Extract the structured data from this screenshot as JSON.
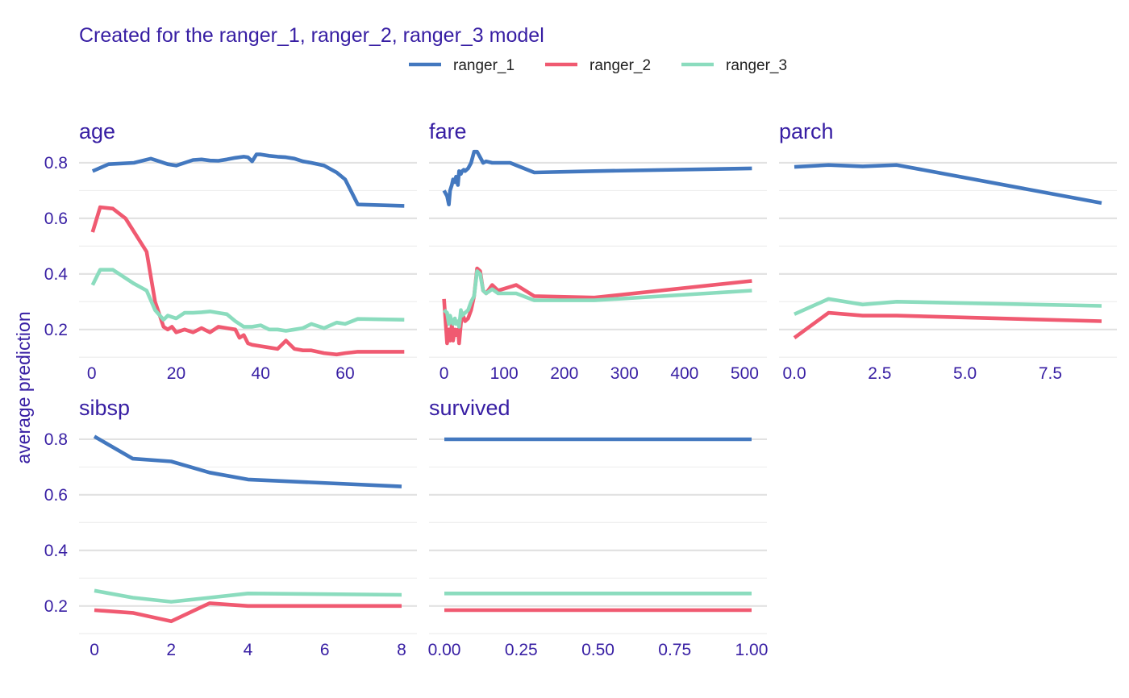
{
  "chart_data": {
    "type": "line",
    "title": "Created for the ranger_1, ranger_2, ranger_3 model",
    "ylabel": "average prediction",
    "legend_position": "top",
    "grid": true,
    "series_colors": {
      "ranger_1": "#4378bf",
      "ranger_2": "#f05a71",
      "ranger_3": "#8bdcbe"
    },
    "legend": [
      "ranger_1",
      "ranger_2",
      "ranger_3"
    ],
    "panels": [
      {
        "name": "age",
        "xlim": [
          -3,
          77
        ],
        "ylim": [
          0.095,
          0.855
        ],
        "xticks": [
          {
            "v": 0,
            "label": "0"
          },
          {
            "v": 20,
            "label": "20"
          },
          {
            "v": 40,
            "label": "40"
          },
          {
            "v": 60,
            "label": "60"
          }
        ],
        "yticks": [
          {
            "v": 0.2,
            "label": "0.2"
          },
          {
            "v": 0.4,
            "label": "0.4"
          },
          {
            "v": 0.6,
            "label": "0.6"
          },
          {
            "v": 0.8,
            "label": "0.8"
          }
        ],
        "series": [
          {
            "name": "ranger_1",
            "x": [
              0.2,
              4,
              10,
              14,
              16,
              18,
              20,
              22,
              24,
              26,
              28,
              30,
              32,
              34,
              36,
              37,
              38,
              39,
              40,
              42,
              44,
              46,
              48,
              50,
              52,
              55,
              58,
              60,
              63,
              74
            ],
            "y": [
              0.77,
              0.795,
              0.8,
              0.815,
              0.805,
              0.795,
              0.79,
              0.8,
              0.81,
              0.812,
              0.808,
              0.807,
              0.812,
              0.818,
              0.822,
              0.82,
              0.805,
              0.83,
              0.83,
              0.825,
              0.822,
              0.82,
              0.815,
              0.805,
              0.8,
              0.79,
              0.765,
              0.74,
              0.65,
              0.645
            ]
          },
          {
            "name": "ranger_2",
            "x": [
              0.2,
              2,
              5,
              8,
              13,
              15,
              17,
              18,
              19,
              20,
              22,
              24,
              26,
              28,
              30,
              32,
              34,
              35,
              36,
              37,
              38,
              40,
              42,
              44,
              46,
              48,
              50,
              52,
              55,
              58,
              60,
              63,
              74
            ],
            "y": [
              0.55,
              0.64,
              0.635,
              0.6,
              0.48,
              0.3,
              0.21,
              0.2,
              0.21,
              0.19,
              0.2,
              0.19,
              0.205,
              0.19,
              0.21,
              0.205,
              0.2,
              0.17,
              0.18,
              0.15,
              0.145,
              0.14,
              0.135,
              0.13,
              0.16,
              0.13,
              0.125,
              0.125,
              0.115,
              0.11,
              0.115,
              0.12,
              0.12
            ]
          },
          {
            "name": "ranger_3",
            "x": [
              0.2,
              2,
              5,
              10,
              13,
              15,
              17,
              18,
              19,
              20,
              22,
              24,
              26,
              28,
              30,
              32,
              34,
              36,
              38,
              40,
              42,
              44,
              46,
              48,
              50,
              52,
              55,
              58,
              60,
              63,
              74
            ],
            "y": [
              0.36,
              0.415,
              0.415,
              0.365,
              0.34,
              0.27,
              0.235,
              0.25,
              0.245,
              0.24,
              0.26,
              0.26,
              0.262,
              0.265,
              0.26,
              0.255,
              0.23,
              0.21,
              0.21,
              0.215,
              0.2,
              0.2,
              0.195,
              0.2,
              0.205,
              0.22,
              0.205,
              0.225,
              0.22,
              0.238,
              0.235
            ]
          }
        ]
      },
      {
        "name": "fare",
        "xlim": [
          -25,
          537
        ],
        "ylim": [
          0.095,
          0.855
        ],
        "xticks": [
          {
            "v": 0,
            "label": "0"
          },
          {
            "v": 100,
            "label": "100"
          },
          {
            "v": 200,
            "label": "200"
          },
          {
            "v": 300,
            "label": "300"
          },
          {
            "v": 400,
            "label": "400"
          },
          {
            "v": 500,
            "label": "500"
          }
        ],
        "yticks": [
          {
            "v": 0.2,
            "label": "0.2"
          },
          {
            "v": 0.4,
            "label": "0.4"
          },
          {
            "v": 0.6,
            "label": "0.6"
          },
          {
            "v": 0.8,
            "label": "0.8"
          }
        ],
        "series": [
          {
            "name": "ranger_1",
            "x": [
              0,
              5,
              8,
              10,
              13,
              15,
              18,
              20,
              23,
              25,
              28,
              30,
              33,
              35,
              40,
              45,
              50,
              55,
              60,
              65,
              70,
              80,
              90,
              110,
              150,
              250,
              512
            ],
            "y": [
              0.7,
              0.68,
              0.65,
              0.7,
              0.72,
              0.74,
              0.73,
              0.75,
              0.72,
              0.77,
              0.76,
              0.77,
              0.775,
              0.77,
              0.78,
              0.8,
              0.84,
              0.84,
              0.82,
              0.8,
              0.805,
              0.8,
              0.8,
              0.8,
              0.765,
              0.77,
              0.78
            ]
          },
          {
            "name": "ranger_2",
            "x": [
              0,
              5,
              8,
              10,
              13,
              15,
              18,
              20,
              23,
              25,
              28,
              30,
              35,
              40,
              45,
              50,
              55,
              60,
              65,
              70,
              80,
              90,
              120,
              150,
              250,
              512
            ],
            "y": [
              0.31,
              0.15,
              0.2,
              0.16,
              0.22,
              0.16,
              0.2,
              0.18,
              0.2,
              0.15,
              0.22,
              0.26,
              0.23,
              0.24,
              0.27,
              0.32,
              0.42,
              0.41,
              0.34,
              0.33,
              0.36,
              0.34,
              0.36,
              0.32,
              0.315,
              0.375
            ]
          },
          {
            "name": "ranger_3",
            "x": [
              0,
              5,
              8,
              10,
              13,
              15,
              18,
              20,
              23,
              25,
              28,
              30,
              35,
              40,
              45,
              50,
              55,
              60,
              65,
              70,
              80,
              90,
              120,
              150,
              250,
              512
            ],
            "y": [
              0.27,
              0.26,
              0.22,
              0.25,
              0.23,
              0.22,
              0.24,
              0.22,
              0.23,
              0.21,
              0.27,
              0.25,
              0.26,
              0.27,
              0.3,
              0.32,
              0.41,
              0.4,
              0.34,
              0.33,
              0.345,
              0.33,
              0.33,
              0.305,
              0.305,
              0.34
            ]
          }
        ]
      },
      {
        "name": "parch",
        "xlim": [
          -0.45,
          9.45
        ],
        "ylim": [
          0.095,
          0.855
        ],
        "xticks": [
          {
            "v": 0,
            "label": "0.0"
          },
          {
            "v": 2.5,
            "label": "2.5"
          },
          {
            "v": 5,
            "label": "5.0"
          },
          {
            "v": 7.5,
            "label": "7.5"
          }
        ],
        "yticks": [
          {
            "v": 0.2,
            "label": "0.2"
          },
          {
            "v": 0.4,
            "label": "0.4"
          },
          {
            "v": 0.6,
            "label": "0.6"
          },
          {
            "v": 0.8,
            "label": "0.8"
          }
        ],
        "series": [
          {
            "name": "ranger_1",
            "x": [
              0,
              1,
              2,
              3,
              9
            ],
            "y": [
              0.785,
              0.792,
              0.787,
              0.792,
              0.655
            ]
          },
          {
            "name": "ranger_2",
            "x": [
              0,
              1,
              2,
              3,
              9
            ],
            "y": [
              0.17,
              0.26,
              0.25,
              0.25,
              0.23
            ]
          },
          {
            "name": "ranger_3",
            "x": [
              0,
              1,
              2,
              3,
              9
            ],
            "y": [
              0.255,
              0.31,
              0.29,
              0.3,
              0.285
            ]
          }
        ]
      },
      {
        "name": "sibsp",
        "xlim": [
          -0.4,
          8.4
        ],
        "ylim": [
          0.095,
          0.855
        ],
        "xticks": [
          {
            "v": 0,
            "label": "0"
          },
          {
            "v": 2,
            "label": "2"
          },
          {
            "v": 4,
            "label": "4"
          },
          {
            "v": 6,
            "label": "6"
          },
          {
            "v": 8,
            "label": "8"
          }
        ],
        "yticks": [
          {
            "v": 0.2,
            "label": "0.2"
          },
          {
            "v": 0.4,
            "label": "0.4"
          },
          {
            "v": 0.6,
            "label": "0.6"
          },
          {
            "v": 0.8,
            "label": "0.8"
          }
        ],
        "series": [
          {
            "name": "ranger_1",
            "x": [
              0,
              1,
              2,
              3,
              4,
              8
            ],
            "y": [
              0.81,
              0.73,
              0.72,
              0.68,
              0.655,
              0.63
            ]
          },
          {
            "name": "ranger_2",
            "x": [
              0,
              1,
              2,
              3,
              4,
              8
            ],
            "y": [
              0.185,
              0.175,
              0.145,
              0.21,
              0.2,
              0.2
            ]
          },
          {
            "name": "ranger_3",
            "x": [
              0,
              1,
              2,
              3,
              4,
              8
            ],
            "y": [
              0.255,
              0.23,
              0.215,
              0.23,
              0.245,
              0.24
            ]
          }
        ]
      },
      {
        "name": "survived",
        "xlim": [
          -0.05,
          1.05
        ],
        "ylim": [
          0.095,
          0.855
        ],
        "xticks": [
          {
            "v": 0,
            "label": "0.00"
          },
          {
            "v": 0.25,
            "label": "0.25"
          },
          {
            "v": 0.5,
            "label": "0.50"
          },
          {
            "v": 0.75,
            "label": "0.75"
          },
          {
            "v": 1,
            "label": "1.00"
          }
        ],
        "yticks": [
          {
            "v": 0.2,
            "label": "0.2"
          },
          {
            "v": 0.4,
            "label": "0.4"
          },
          {
            "v": 0.6,
            "label": "0.6"
          },
          {
            "v": 0.8,
            "label": "0.8"
          }
        ],
        "series": [
          {
            "name": "ranger_1",
            "x": [
              0,
              1
            ],
            "y": [
              0.8,
              0.8
            ]
          },
          {
            "name": "ranger_2",
            "x": [
              0,
              1
            ],
            "y": [
              0.185,
              0.185
            ]
          },
          {
            "name": "ranger_3",
            "x": [
              0,
              1
            ],
            "y": [
              0.245,
              0.245
            ]
          }
        ]
      }
    ]
  }
}
